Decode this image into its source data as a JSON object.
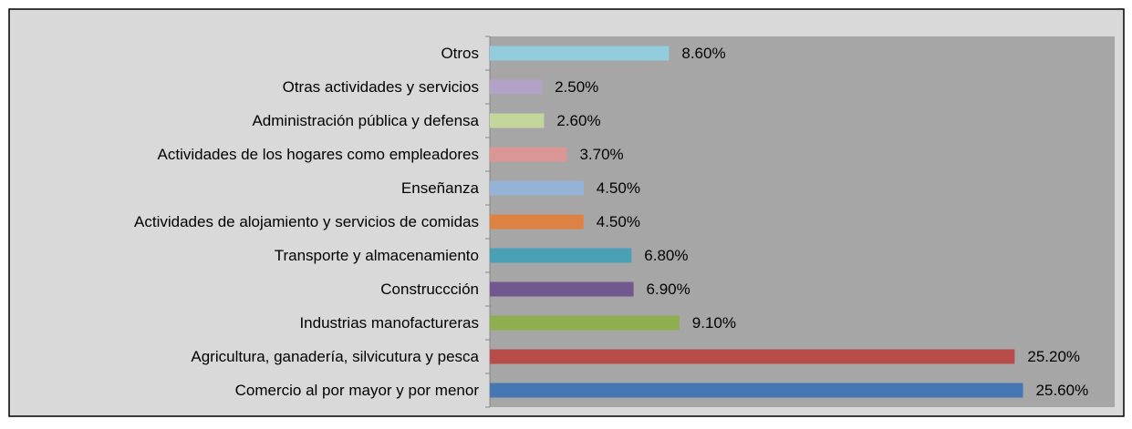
{
  "chart_data": {
    "type": "hbar",
    "categories": [
      "Comercio al por mayor y por menor",
      "Agricultura, ganadería, silvicutura y pesca",
      "Industrias manofactureras",
      "Construccción",
      "Transporte y almacenamiento",
      "Actividades de alojamiento y servicios de comidas",
      "Enseñanza",
      "Actividades de los hogares como empleadores",
      "Administración pública y defensa",
      "Otras actividades y servicios",
      "Otros"
    ],
    "values": [
      25.6,
      25.2,
      9.1,
      6.9,
      6.8,
      4.5,
      4.5,
      3.7,
      2.6,
      2.5,
      8.6
    ],
    "value_labels": [
      "25.60%",
      "25.20%",
      "9.10%",
      "6.90%",
      "6.80%",
      "4.50%",
      "4.50%",
      "3.70%",
      "2.60%",
      "2.50%",
      "8.60%"
    ],
    "colors": [
      "#4677b5",
      "#b84c4a",
      "#8eae4f",
      "#71588f",
      "#4aa0b5",
      "#dd8242",
      "#95b3d7",
      "#d99694",
      "#c3d69b",
      "#b3a2c7",
      "#93cddd"
    ],
    "xlim": [
      0,
      30
    ]
  }
}
